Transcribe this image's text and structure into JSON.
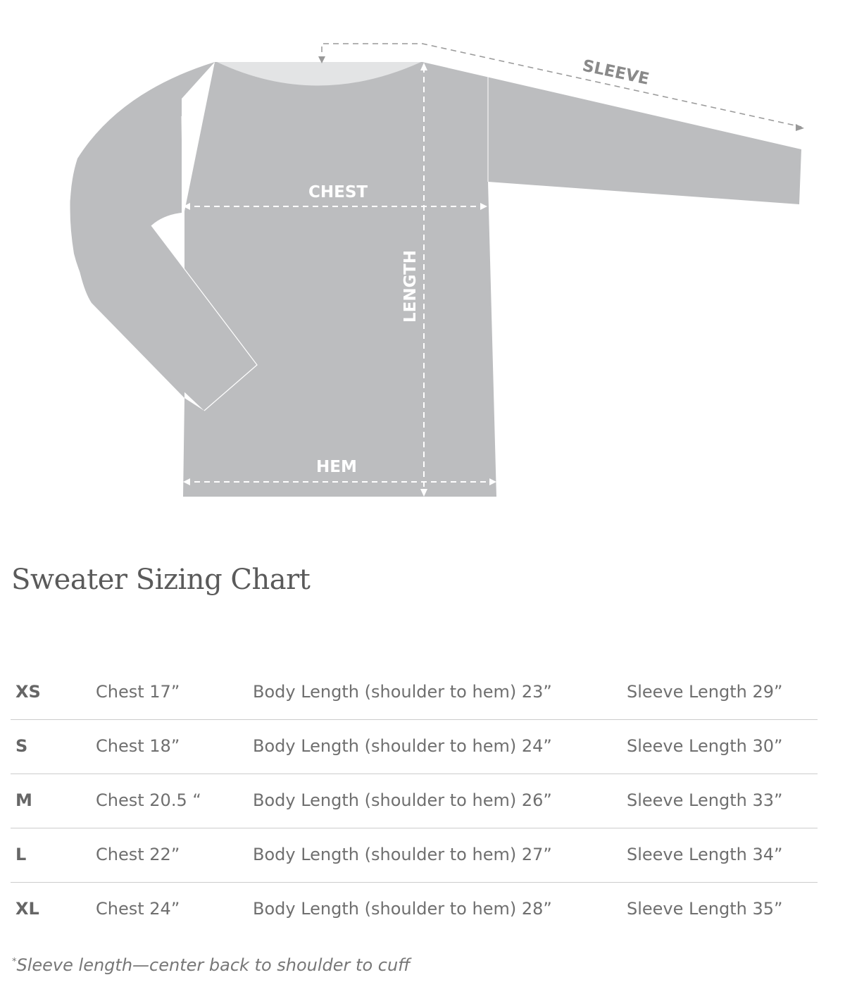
{
  "diagram": {
    "labels": {
      "sleeve": "SLEEVE",
      "chest": "CHEST",
      "length": "LENGTH",
      "hem": "HEM"
    },
    "colors": {
      "garment": "#bcbdbf",
      "neckline": "#e3e4e5",
      "measure_lines": "#ffffff",
      "sleeve_line": "#9a9a9a"
    }
  },
  "title": "Sweater Sizing Chart",
  "rows": [
    {
      "size": "XS",
      "chest": "Chest 17”",
      "body": "Body Length (shoulder to hem) 23”",
      "sleeve": "Sleeve Length 29”"
    },
    {
      "size": "S",
      "chest": "Chest 18”",
      "body": "Body Length (shoulder to hem) 24”",
      "sleeve": "Sleeve Length 30”"
    },
    {
      "size": "M",
      "chest": "Chest 20.5 “",
      "body": "Body Length (shoulder to hem) 26”",
      "sleeve": "Sleeve Length 33”"
    },
    {
      "size": "L",
      "chest": "Chest 22”",
      "body": "Body Length (shoulder to hem) 27”",
      "sleeve": "Sleeve Length 34”"
    },
    {
      "size": "XL",
      "chest": "Chest 24”",
      "body": "Body Length (shoulder to hem) 28”",
      "sleeve": "Sleeve Length 35”"
    }
  ],
  "footnote": {
    "marker": "*",
    "text": "Sleeve length—center back to shoulder to cuff"
  }
}
